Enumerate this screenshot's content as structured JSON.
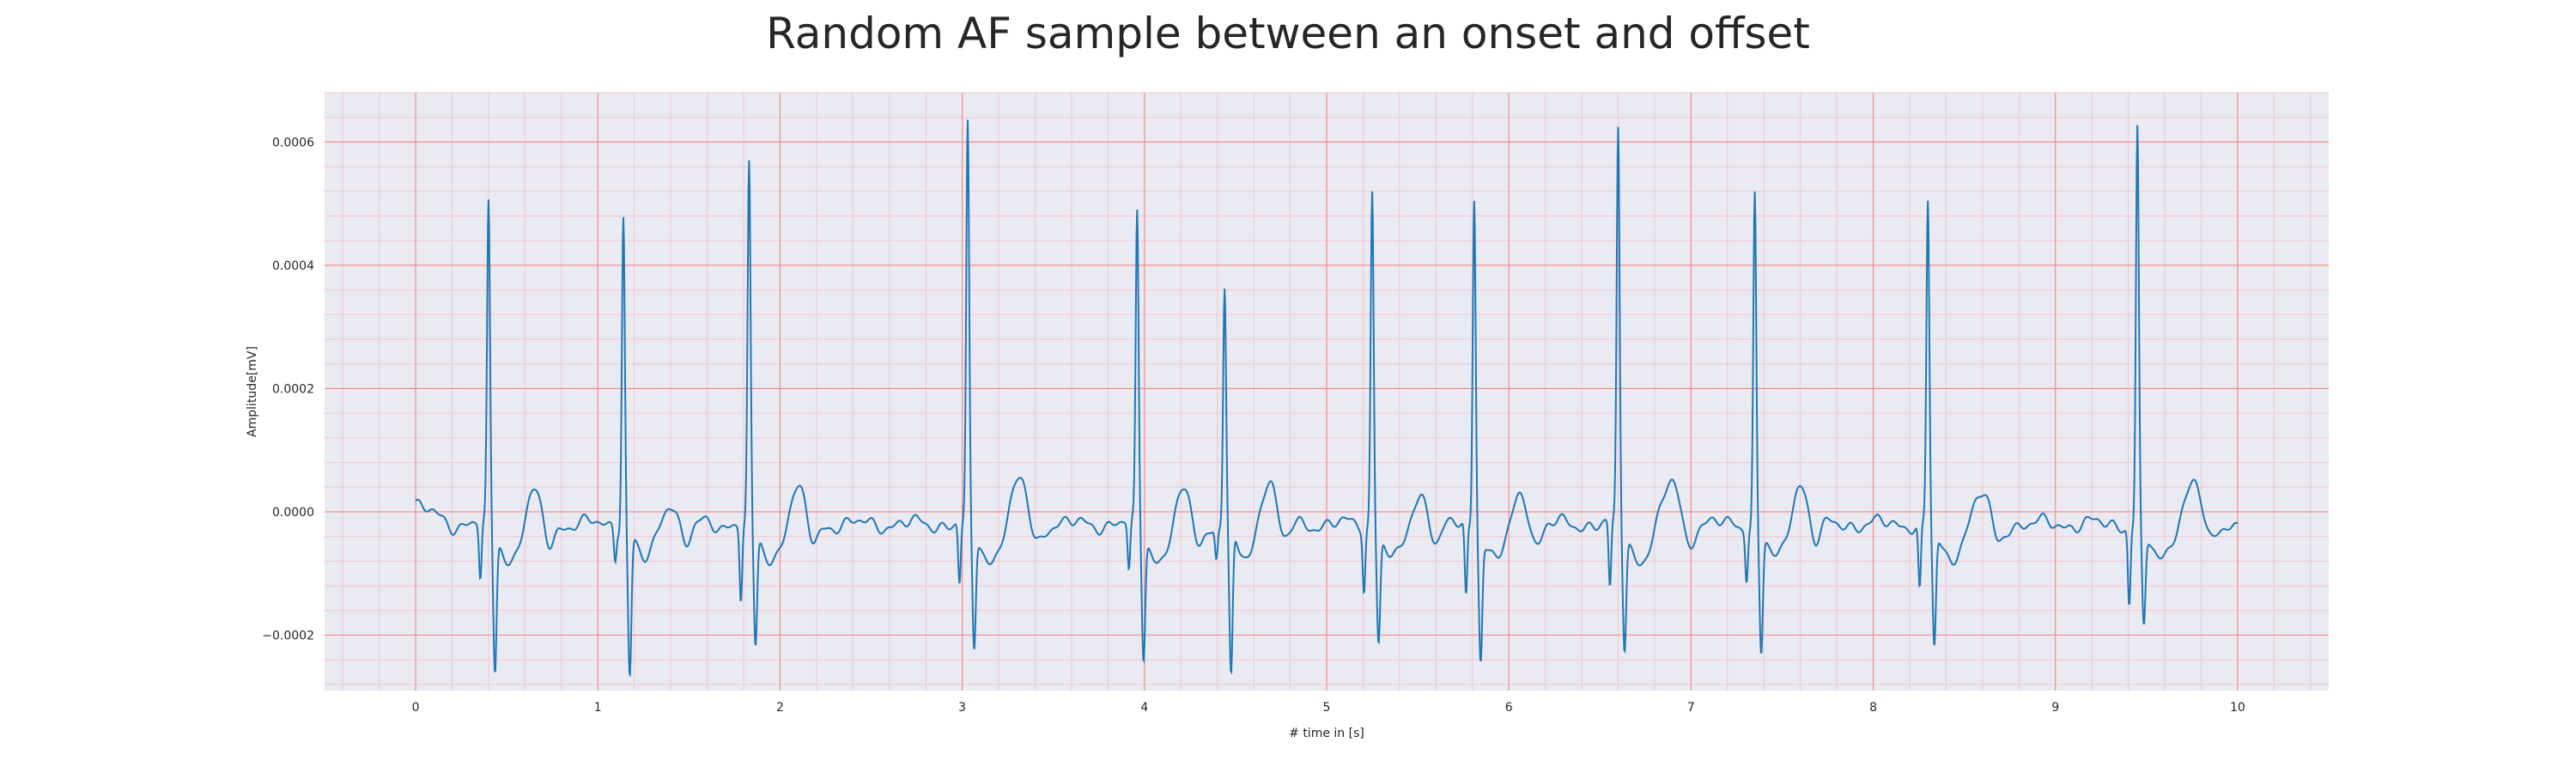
{
  "chart_data": {
    "type": "line",
    "title": "Random AF sample between an onset and offset",
    "xlabel": "# time in [s]",
    "ylabel": "Amplitude[mV]",
    "xlim": [
      -0.5,
      10.5
    ],
    "ylim": [
      -0.00029,
      0.00068
    ],
    "x_ticks": [
      "0",
      "1",
      "2",
      "3",
      "4",
      "5",
      "6",
      "7",
      "8",
      "9",
      "10"
    ],
    "y_ticks": [
      "−0.0002",
      "0.0000",
      "0.0002",
      "0.0004",
      "0.0006"
    ],
    "grid": true,
    "legend": "none",
    "colors": {
      "line": "#1f77b4",
      "plot_background": "#eaeaf2",
      "major_grid": "#f28b8b",
      "minor_grid": "#f3c4cf"
    },
    "series": [
      {
        "beats": [
          {
            "t": 0.4,
            "peak": 0.000515,
            "trough": -0.000225,
            "pre": -9e-05
          },
          {
            "t": 1.14,
            "peak": 0.000508,
            "trough": -0.000235,
            "pre": -5e-05
          },
          {
            "t": 1.83,
            "peak": 0.000577,
            "trough": -0.00019,
            "pre": -0.00012
          },
          {
            "t": 3.03,
            "peak": 0.000643,
            "trough": -0.00019,
            "pre": -0.0001
          },
          {
            "t": 3.96,
            "peak": 0.000505,
            "trough": -0.0002,
            "pre": -8e-05
          },
          {
            "t": 4.44,
            "peak": 0.000385,
            "trough": -0.000245,
            "pre": -5e-05
          },
          {
            "t": 5.25,
            "peak": 0.000545,
            "trough": -0.000175,
            "pre": -0.0001
          },
          {
            "t": 5.81,
            "peak": 0.000538,
            "trough": -0.0002,
            "pre": -0.00012
          },
          {
            "t": 6.6,
            "peak": 0.00064,
            "trough": -0.000185,
            "pre": -0.00011
          },
          {
            "t": 7.35,
            "peak": 0.000537,
            "trough": -0.000195,
            "pre": -8e-05
          },
          {
            "t": 8.3,
            "peak": 0.000525,
            "trough": -0.00019,
            "pre": -0.00011
          },
          {
            "t": 9.45,
            "peak": 0.000642,
            "trough": -0.000155,
            "pre": -0.000125
          }
        ],
        "t_waves": [
          {
            "t": 0.65,
            "amp": 5e-05
          },
          {
            "t": 1.4,
            "amp": 4e-05
          },
          {
            "t": 2.1,
            "amp": 5.5e-05
          },
          {
            "t": 3.32,
            "amp": 7e-05
          },
          {
            "t": 4.22,
            "amp": 5e-05
          },
          {
            "t": 4.68,
            "amp": 8e-05
          },
          {
            "t": 5.52,
            "amp": 5e-05
          },
          {
            "t": 6.07,
            "amp": 5e-05
          },
          {
            "t": 6.9,
            "amp": 7e-05
          },
          {
            "t": 7.6,
            "amp": 7e-05
          },
          {
            "t": 8.6,
            "amp": 5e-05
          },
          {
            "t": 9.76,
            "amp": 7e-05
          }
        ],
        "start_value": 1e-05,
        "end_value": -2e-05,
        "t_start": 0,
        "t_end": 10
      }
    ]
  }
}
